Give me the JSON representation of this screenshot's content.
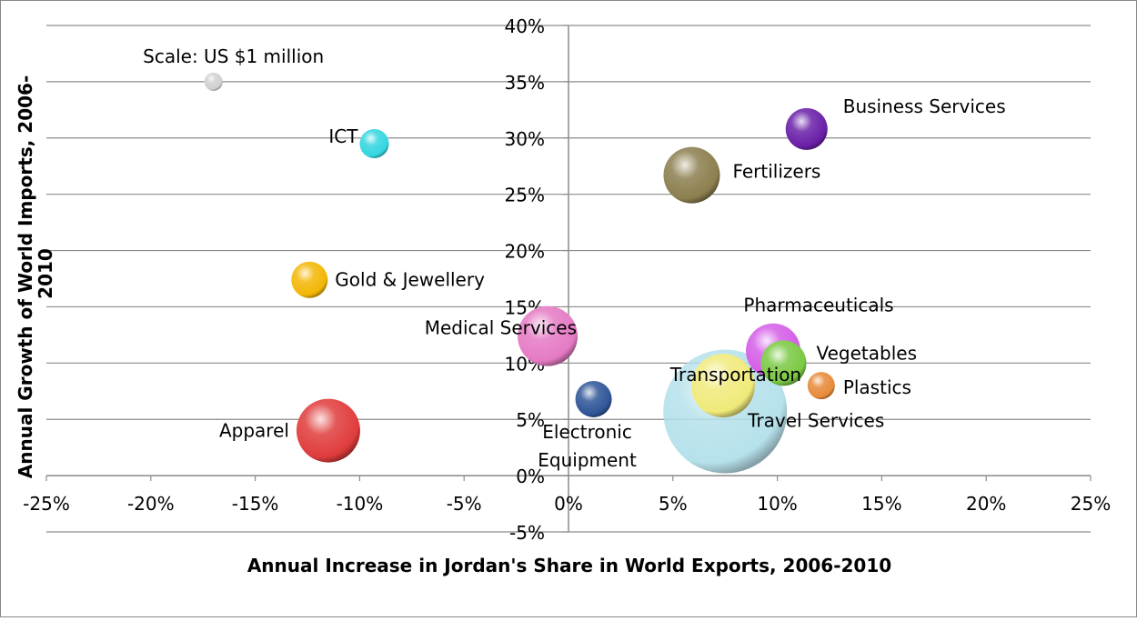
{
  "chart_data": {
    "type": "scatter",
    "subtype": "bubble",
    "xlabel": "Annual Increase in Jordan's Share in World Exports, 2006-2010",
    "ylabel": "Annual Growth of World Imports, 2006-2010",
    "xlim": [
      -0.25,
      0.25
    ],
    "ylim": [
      -0.05,
      0.4
    ],
    "xticks": [
      "-25%",
      "-20%",
      "-15%",
      "-10%",
      "-5%",
      "0%",
      "5%",
      "10%",
      "15%",
      "20%",
      "25%"
    ],
    "yticks": [
      "-5%",
      "0%",
      "5%",
      "10%",
      "15%",
      "20%",
      "25%",
      "30%",
      "35%",
      "40%"
    ],
    "grid": "horizontal",
    "points": [
      {
        "label": "Scale: US $1 million",
        "x": -0.17,
        "y": 0.35,
        "color": "#d0d0d0"
      },
      {
        "label": "ICT",
        "x": -0.093,
        "y": 0.295,
        "color": "#33d6e0"
      },
      {
        "label": "Business Services",
        "x": 0.114,
        "y": 0.308,
        "color": "#6a1fa8"
      },
      {
        "label": "Fertilizers",
        "x": 0.059,
        "y": 0.267,
        "color": "#8c7f4f"
      },
      {
        "label": "Gold & Jewellery",
        "x": -0.124,
        "y": 0.174,
        "color": "#f2b705"
      },
      {
        "label": "Medical Services",
        "x": -0.01,
        "y": 0.124,
        "color": "#e57ac4"
      },
      {
        "label": "Pharmaceuticals",
        "x": 0.098,
        "y": 0.111,
        "color": "#d55ee8"
      },
      {
        "label": "Vegetables",
        "x": 0.103,
        "y": 0.1,
        "color": "#7ac943"
      },
      {
        "label": "Plastics",
        "x": 0.121,
        "y": 0.08,
        "color": "#e88a3a"
      },
      {
        "label": "Transportation",
        "x": 0.074,
        "y": 0.08,
        "color": "#f0ea7a"
      },
      {
        "label": "Travel Services",
        "x": 0.075,
        "y": 0.057,
        "color": "#a9dce8"
      },
      {
        "label": "Electronic Equipment",
        "x": 0.012,
        "y": 0.068,
        "color": "#2f5597"
      },
      {
        "label": "Apparel",
        "x": -0.115,
        "y": 0.04,
        "color": "#e03c3c"
      }
    ]
  }
}
